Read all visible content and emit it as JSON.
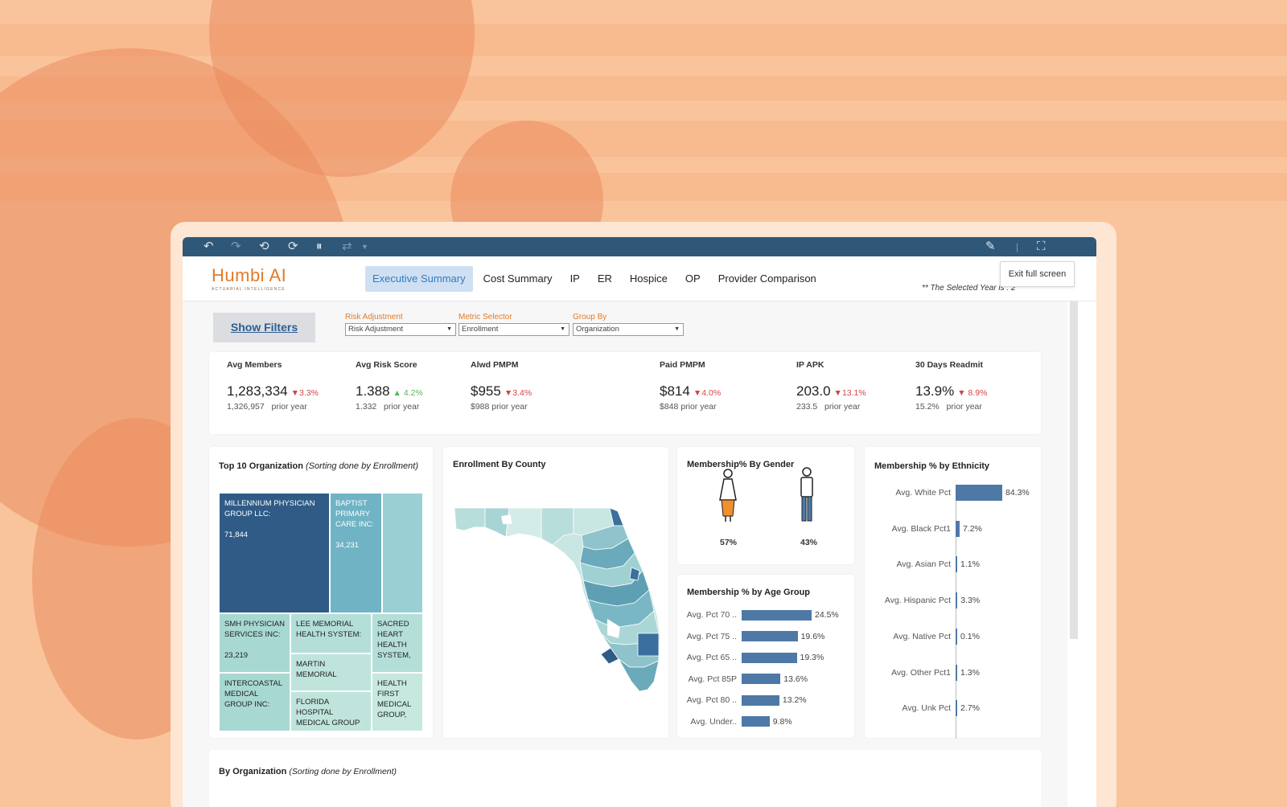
{
  "toolbar": {
    "icons": [
      "undo-icon",
      "redo-icon",
      "revert-icon",
      "refresh-icon",
      "pause-icon",
      "share-icon",
      "highlight-icon",
      "fullscreen-icon"
    ],
    "tooltip": "Exit full screen"
  },
  "brand": {
    "logo_text": "Humbi AI",
    "tagline": "ACTUARIAL INTELLIGENCE"
  },
  "tabs": [
    {
      "label": "Executive Summary",
      "active": true
    },
    {
      "label": "Cost Summary"
    },
    {
      "label": "IP"
    },
    {
      "label": "ER"
    },
    {
      "label": "Hospice"
    },
    {
      "label": "OP"
    },
    {
      "label": "Provider Comparison"
    }
  ],
  "selected_year_text": "** The Selected Year is : 2",
  "filters": {
    "show_filters_label": "Show Filters",
    "risk_adjustment": {
      "label": "Risk Adjustment",
      "value": "Risk Adjustment"
    },
    "metric_selector": {
      "label": "Metric Selector",
      "value": "Enrollment"
    },
    "group_by": {
      "label": "Group By",
      "value": "Organization"
    }
  },
  "kpis": [
    {
      "title": "Avg Members",
      "value": "1,283,334",
      "change": "▼3.3%",
      "dir": "down",
      "prior": "1,326,957",
      "prior_label": "prior year"
    },
    {
      "title": "Avg Risk Score",
      "value": "1.388",
      "change": "▲ 4.2%",
      "dir": "up",
      "prior": "1.332",
      "prior_label": "prior year"
    },
    {
      "title": "Alwd PMPM",
      "value": "$955",
      "change": "▼3.4%",
      "dir": "down",
      "prior": "$988",
      "prior_label": "prior year"
    },
    {
      "title": "Paid PMPM",
      "value": "$814",
      "change": "▼4.0%",
      "dir": "down",
      "prior": "$848",
      "prior_label": "prior year"
    },
    {
      "title": "IP APK",
      "value": "203.0",
      "change": "▼13.1%",
      "dir": "down",
      "prior": "233.5",
      "prior_label": "prior year"
    },
    {
      "title": "30 Days Readmit",
      "value": "13.9%",
      "change": "▼ 8.9%",
      "dir": "down",
      "prior": "15.2%",
      "prior_label": "prior year"
    }
  ],
  "treemap": {
    "title": "Top 10  Organization",
    "subtitle": "(Sorting done by Enrollment)",
    "cells": [
      {
        "name": "MILLENNIUM PHYSICIAN GROUP LLC:",
        "value": "71,844"
      },
      {
        "name": "BAPTIST PRIMARY CARE INC:",
        "value": "34,231"
      },
      {
        "name": "SMH PHYSICIAN SERVICES INC:",
        "value": "23,219"
      },
      {
        "name": "LEE MEMORIAL HEALTH SYSTEM:",
        "value": ""
      },
      {
        "name": "SACRED HEART HEALTH SYSTEM,",
        "value": ""
      },
      {
        "name": "MARTIN MEMORIAL",
        "value": ""
      },
      {
        "name": "INTERCOASTAL MEDICAL GROUP INC:",
        "value": ""
      },
      {
        "name": "FLORIDA HOSPITAL MEDICAL GROUP",
        "value": ""
      },
      {
        "name": "HEALTH FIRST MEDICAL GROUP,",
        "value": ""
      }
    ]
  },
  "map": {
    "title": "Enrollment  By County"
  },
  "gender": {
    "title": "Membership% By Gender",
    "female_pct": "57%",
    "male_pct": "43%"
  },
  "age_group": {
    "title": "Membership % by Age Group",
    "labels": [
      "Avg. Pct 70 ..",
      "Avg. Pct 75 ..",
      "Avg. Pct 65 ..",
      "Avg. Pct 85P",
      "Avg. Pct 80 ..",
      "Avg. Under.."
    ],
    "values": [
      24.5,
      19.6,
      19.3,
      13.6,
      13.2,
      9.8
    ],
    "value_labels": [
      "24.5%",
      "19.6%",
      "19.3%",
      "13.6%",
      "13.2%",
      "9.8%"
    ]
  },
  "ethnicity": {
    "title": "Membership % by Ethnicity",
    "labels": [
      "Avg. White Pct",
      "Avg. Black Pct1",
      "Avg. Asian Pct",
      "Avg. Hispanic Pct",
      "Avg. Native Pct",
      "Avg. Other Pct1",
      "Avg. Unk Pct"
    ],
    "values": [
      84.3,
      7.2,
      1.1,
      3.3,
      0.1,
      1.3,
      2.7
    ],
    "value_labels": [
      "84.3%",
      "7.2%",
      "1.1%",
      "3.3%",
      "0.1%",
      "1.3%",
      "2.7%"
    ]
  },
  "by_org": {
    "title": "By Organization",
    "subtitle": "(Sorting done by Enrollment)"
  },
  "colors": {
    "bar": "#4e79a7",
    "nav_bg": "#2f5878",
    "accent": "#e07b2a",
    "down": "#d64545",
    "up": "#5ab55a"
  }
}
